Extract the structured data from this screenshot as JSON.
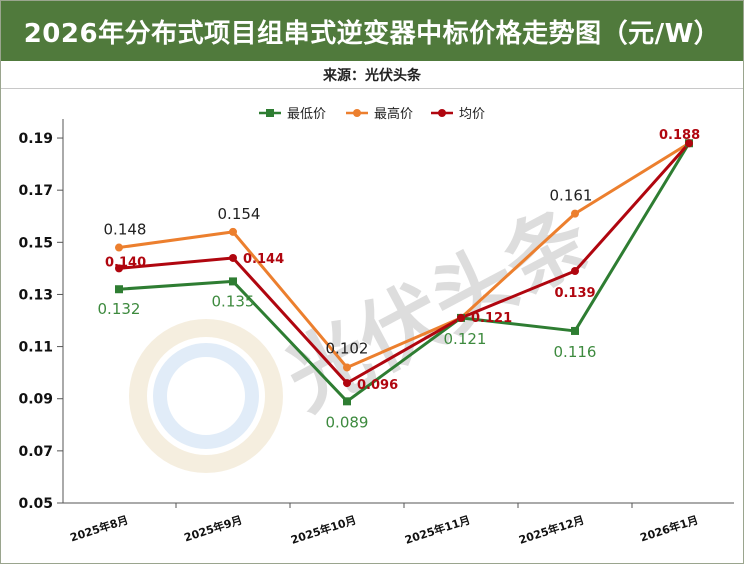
{
  "header": {
    "title": "2026年分布式项目组串式逆变器中标价格走势图（元/W）",
    "source": "来源：光伏头条"
  },
  "watermark": {
    "text": "光伏头条"
  },
  "colors": {
    "title_bg": "#507a3c",
    "min_series": "#2e7d32",
    "max_series": "#ec7f2e",
    "avg_series": "#b0060f"
  },
  "chart_data": {
    "type": "line",
    "categories": [
      "2025年8月",
      "2025年9月",
      "2025年10月",
      "2025年11月",
      "2025年12月",
      "2026年1月"
    ],
    "y_ticks": [
      "0.05",
      "0.07",
      "0.09",
      "0.11",
      "0.13",
      "0.15",
      "0.17",
      "0.19"
    ],
    "ylim": [
      0.05,
      0.2
    ],
    "grid": false,
    "legend_position": "top-center",
    "series": [
      {
        "name": "最低价",
        "color": "#2e7d32",
        "marker": "square",
        "values": [
          0.132,
          0.135,
          0.089,
          0.121,
          0.116,
          0.188
        ],
        "labels": [
          "0.132",
          "0.135",
          "0.089",
          "0.121",
          "0.116",
          ""
        ]
      },
      {
        "name": "最高价",
        "color": "#ec7f2e",
        "marker": "circle",
        "values": [
          0.148,
          0.154,
          0.102,
          0.121,
          0.161,
          0.188
        ],
        "labels": [
          "0.148",
          "0.154",
          "0.102",
          "",
          "0.161",
          ""
        ]
      },
      {
        "name": "均价",
        "color": "#b0060f",
        "marker": "circle",
        "values": [
          0.14,
          0.144,
          0.096,
          0.121,
          0.139,
          0.188
        ],
        "labels": [
          "0.140",
          "0.144",
          "0.096",
          "0.121",
          "0.139",
          "0.188"
        ]
      }
    ]
  }
}
